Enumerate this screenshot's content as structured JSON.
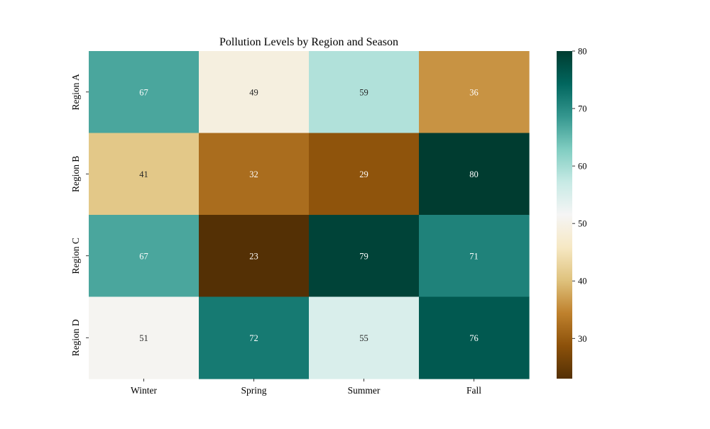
{
  "chart_data": {
    "type": "heatmap",
    "title": "Pollution Levels by Region and Season",
    "xlabel": "",
    "ylabel": "",
    "x_categories": [
      "Winter",
      "Spring",
      "Summer",
      "Fall"
    ],
    "y_categories": [
      "Region A",
      "Region B",
      "Region C",
      "Region D"
    ],
    "values": [
      [
        67,
        49,
        59,
        36
      ],
      [
        41,
        32,
        29,
        80
      ],
      [
        67,
        23,
        79,
        71
      ],
      [
        51,
        72,
        55,
        76
      ]
    ],
    "annotations": true,
    "colormap": "BrBG",
    "vmin": 23,
    "vmax": 80,
    "colorbar": {
      "ticks": [
        30,
        40,
        50,
        60,
        70,
        80
      ],
      "position": "right"
    },
    "grid": false,
    "annotation_colors": {
      "light": "#ffffff",
      "dark": "#262626"
    },
    "colormap_stops": [
      "#543005",
      "#8c510a",
      "#bf812d",
      "#dfc27d",
      "#f6e8c3",
      "#f5f5f5",
      "#c7eae5",
      "#80cdc1",
      "#35978f",
      "#01665e",
      "#003c30"
    ]
  }
}
